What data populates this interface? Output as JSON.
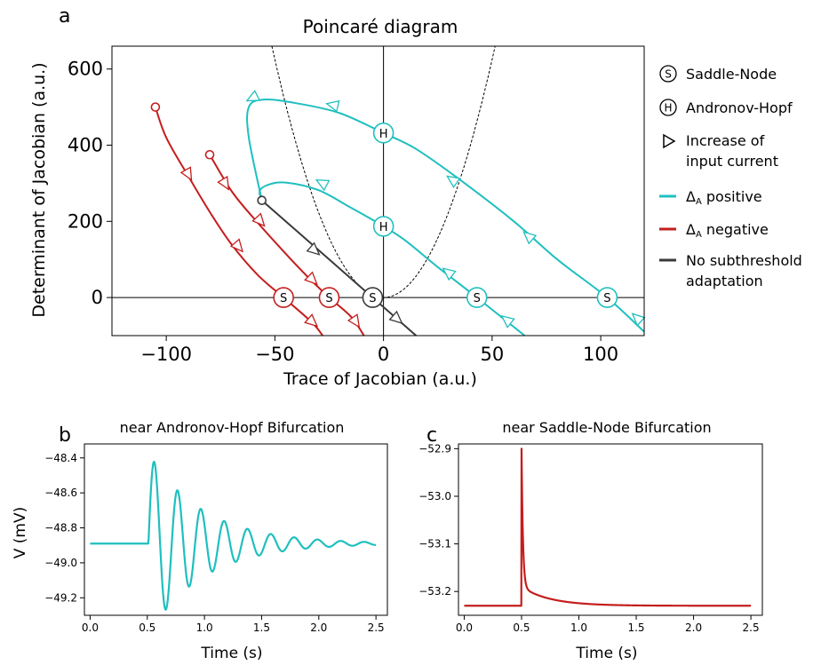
{
  "colors": {
    "cyan": "#1fbfbf",
    "red": "#c41e1e",
    "gray": "#3a3a3a"
  },
  "chart_data": [
    {
      "panel": "a",
      "type": "line",
      "title": "Poincaré diagram",
      "xlabel": "Trace of Jacobian (a.u.)",
      "ylabel": "Determinant of Jacobian (a.u.)",
      "xlim": [
        -125,
        120
      ],
      "ylim": [
        -100,
        660
      ],
      "xticks": [
        -100,
        -50,
        0,
        50,
        100
      ],
      "yticks": [
        0,
        200,
        400,
        600
      ],
      "grid": false,
      "legend_position": "right",
      "legend": [
        {
          "marker": "S",
          "label": "Saddle-Node"
        },
        {
          "marker": "H",
          "label": "Andronov-Hopf"
        },
        {
          "marker": "triangle",
          "label_lines": [
            "Increase of",
            "input current"
          ]
        },
        {
          "color_key": "cyan",
          "label_main": "Δ",
          "label_sub": "A",
          "label_tail": " positive"
        },
        {
          "color_key": "red",
          "label_main": "Δ",
          "label_sub": "A",
          "label_tail": " negative"
        },
        {
          "color_key": "gray",
          "label_lines": [
            "No subthreshold",
            "adaptation"
          ]
        }
      ],
      "reference_curve": {
        "name": "det = tr²/4",
        "style": "dashed"
      },
      "series": [
        {
          "color_key": "cyan",
          "group": "positive",
          "points": [
            [
              120,
              -90
            ],
            [
              103,
              0
            ],
            [
              80,
              100
            ],
            [
              60,
              200
            ],
            [
              35,
              310
            ],
            [
              15,
              390
            ],
            [
              0,
              432
            ],
            [
              -20,
              484
            ],
            [
              -40,
              510
            ],
            [
              -55,
              520
            ],
            [
              -62,
              500
            ],
            [
              -62,
              420
            ],
            [
              -56,
              255
            ]
          ],
          "markers": [
            {
              "x": 103,
              "y": 0,
              "label": "S"
            },
            {
              "x": 0,
              "y": 432,
              "label": "H"
            }
          ],
          "arrows": [
            {
              "x": 117,
              "y": -55
            },
            {
              "x": 67,
              "y": 160
            },
            {
              "x": 32,
              "y": 308
            },
            {
              "x": -23,
              "y": 505
            },
            {
              "x": -60,
              "y": 525
            }
          ]
        },
        {
          "color_key": "cyan",
          "group": "positive",
          "points": [
            [
              65,
              -100
            ],
            [
              43,
              0
            ],
            [
              25,
              80
            ],
            [
              10,
              150
            ],
            [
              0,
              187
            ],
            [
              -15,
              236
            ],
            [
              -30,
              282
            ],
            [
              -45,
              302
            ],
            [
              -53,
              296
            ],
            [
              -57,
              280
            ],
            [
              -56,
              255
            ]
          ],
          "markers": [
            {
              "x": 43,
              "y": 0,
              "label": "S"
            },
            {
              "x": 0,
              "y": 187,
              "label": "H"
            }
          ],
          "arrows": [
            {
              "x": 57,
              "y": -60
            },
            {
              "x": 30,
              "y": 65
            },
            {
              "x": -28,
              "y": 300
            }
          ]
        },
        {
          "color_key": "gray",
          "group": "none",
          "points": [
            [
              -56,
              255
            ],
            [
              -30,
              125
            ],
            [
              -5,
              0
            ],
            [
              15,
              -100
            ]
          ],
          "start": {
            "x": -56,
            "y": 255
          },
          "markers": [
            {
              "x": -5,
              "y": 0,
              "label": "S"
            }
          ],
          "arrows": [
            {
              "x": -32,
              "y": 125
            },
            {
              "x": 6,
              "y": -55
            }
          ]
        },
        {
          "color_key": "red",
          "group": "negative",
          "points": [
            [
              -105,
              500
            ],
            [
              -100,
              420
            ],
            [
              -90,
              320
            ],
            [
              -80,
              225
            ],
            [
              -70,
              140
            ],
            [
              -58,
              60
            ],
            [
              -46,
              0
            ],
            [
              -33,
              -65
            ],
            [
              -28,
              -100
            ]
          ],
          "start": {
            "x": -105,
            "y": 500
          },
          "markers": [
            {
              "x": -46,
              "y": 0,
              "label": "S"
            }
          ],
          "arrows": [
            {
              "x": -90,
              "y": 325
            },
            {
              "x": -67,
              "y": 135
            },
            {
              "x": -33,
              "y": -63
            }
          ]
        },
        {
          "color_key": "red",
          "group": "negative",
          "points": [
            [
              -80,
              375
            ],
            [
              -70,
              280
            ],
            [
              -60,
              210
            ],
            [
              -45,
              115
            ],
            [
              -35,
              55
            ],
            [
              -25,
              0
            ],
            [
              -15,
              -50
            ],
            [
              -9,
              -100
            ]
          ],
          "start": {
            "x": -80,
            "y": 375
          },
          "markers": [
            {
              "x": -25,
              "y": 0,
              "label": "S"
            }
          ],
          "arrows": [
            {
              "x": -73,
              "y": 300
            },
            {
              "x": -57,
              "y": 202
            },
            {
              "x": -33,
              "y": 48
            },
            {
              "x": -13,
              "y": -62
            }
          ]
        }
      ]
    },
    {
      "panel": "b",
      "type": "line",
      "title": "near Andronov-Hopf Bifurcation",
      "xlabel": "Time (s)",
      "ylabel": "V (mV)",
      "xlim": [
        -0.05,
        2.6
      ],
      "ylim": [
        -49.3,
        -48.32
      ],
      "xticks": [
        0.0,
        0.5,
        1.0,
        1.5,
        2.0,
        2.5
      ],
      "yticks": [
        -48.4,
        -48.6,
        -48.8,
        -49.0,
        -49.2
      ],
      "color_key": "cyan",
      "baseline": -48.89,
      "onset": 0.51,
      "initial_amplitude": 0.52,
      "decay_rate": 2.1,
      "frequency_hz": 4.9,
      "end": 2.5
    },
    {
      "panel": "c",
      "type": "line",
      "title": "near Saddle-Node Bifurcation",
      "xlabel": "Time (s)",
      "ylabel": "",
      "xlim": [
        -0.05,
        2.6
      ],
      "ylim": [
        -53.25,
        -52.89
      ],
      "xticks": [
        0.0,
        0.5,
        1.0,
        1.5,
        2.0,
        2.5
      ],
      "yticks": [
        -52.9,
        -53.0,
        -53.1,
        -53.2
      ],
      "color_key": "red",
      "baseline": -53.23,
      "onset": 0.5,
      "peak": -52.9,
      "end": 2.5
    }
  ]
}
